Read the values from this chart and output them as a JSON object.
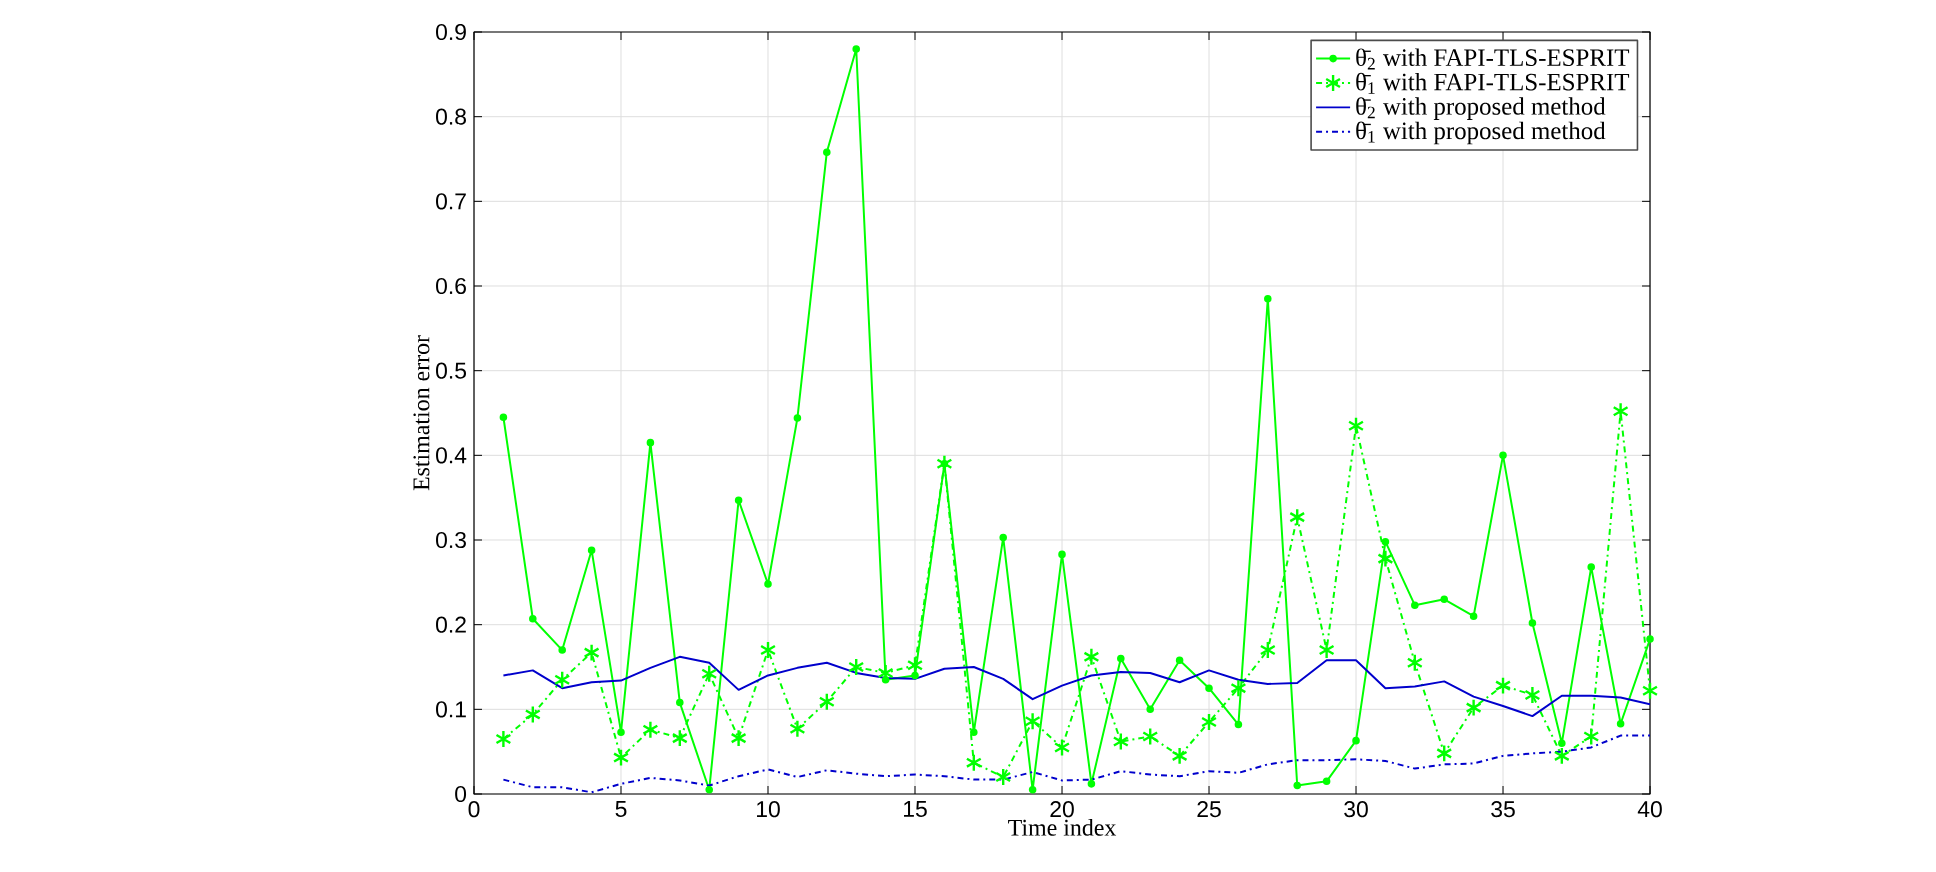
{
  "chart_data": {
    "type": "line",
    "xlabel": "Time index",
    "ylabel": "Estimation error",
    "x": [
      1,
      2,
      3,
      4,
      5,
      6,
      7,
      8,
      9,
      10,
      11,
      12,
      13,
      14,
      15,
      16,
      17,
      18,
      19,
      20,
      21,
      22,
      23,
      24,
      25,
      26,
      27,
      28,
      29,
      30,
      31,
      32,
      33,
      34,
      35,
      36,
      37,
      38,
      39,
      40
    ],
    "xlim": [
      0,
      40
    ],
    "xticks": [
      0,
      5,
      10,
      15,
      20,
      25,
      30,
      35,
      40
    ],
    "ylim": [
      0,
      0.9
    ],
    "yticks": [
      0,
      0.1,
      0.2,
      0.3,
      0.4,
      0.5,
      0.6,
      0.7,
      0.8,
      0.9
    ],
    "grid": true,
    "legend": "top right",
    "series": [
      {
        "name": "θ̄$_{2}$ with FAPI-TLS-ESPRIT",
        "color": "#00ff00",
        "marker": "circle",
        "line_style": "solid",
        "values": [
          0.445,
          0.207,
          0.17,
          0.288,
          0.073,
          0.415,
          0.108,
          0.005,
          0.347,
          0.248,
          0.444,
          0.758,
          0.88,
          0.135,
          0.14,
          0.39,
          0.073,
          0.303,
          0.005,
          0.283,
          0.012,
          0.16,
          0.1,
          0.158,
          0.125,
          0.082,
          0.585,
          0.01,
          0.015,
          0.063,
          0.298,
          0.223,
          0.23,
          0.21,
          0.4,
          0.202,
          0.06,
          0.268,
          0.083,
          0.183
        ]
      },
      {
        "name": "θ̄$_{1}$ with FAPI-TLS-ESPRIT",
        "color": "#00ff00",
        "marker": "cross",
        "line_style": "dashdot",
        "values": [
          0.065,
          0.094,
          0.135,
          0.167,
          0.043,
          0.076,
          0.066,
          0.142,
          0.066,
          0.17,
          0.077,
          0.109,
          0.15,
          0.143,
          0.152,
          0.39,
          0.037,
          0.02,
          0.086,
          0.055,
          0.162,
          0.062,
          0.068,
          0.045,
          0.085,
          0.125,
          0.17,
          0.327,
          0.17,
          0.435,
          0.278,
          0.155,
          0.048,
          0.102,
          0.128,
          0.117,
          0.045,
          0.068,
          0.452,
          0.122
        ]
      },
      {
        "name": "θ̄$_{2}$ with proposed method",
        "color": "#0000cc",
        "marker": "none",
        "line_style": "solid",
        "values": [
          0.14,
          0.146,
          0.125,
          0.132,
          0.134,
          0.149,
          0.162,
          0.155,
          0.123,
          0.14,
          0.149,
          0.155,
          0.143,
          0.137,
          0.136,
          0.148,
          0.15,
          0.136,
          0.112,
          0.128,
          0.14,
          0.144,
          0.143,
          0.132,
          0.146,
          0.135,
          0.13,
          0.131,
          0.158,
          0.158,
          0.125,
          0.127,
          0.133,
          0.115,
          0.104,
          0.092,
          0.116,
          0.116,
          0.114,
          0.106
        ]
      },
      {
        "name": "θ̄$_{1}$ with proposed method",
        "color": "#0000cc",
        "marker": "none",
        "line_style": "dashdot",
        "values": [
          0.017,
          0.008,
          0.008,
          0.002,
          0.012,
          0.019,
          0.016,
          0.01,
          0.021,
          0.029,
          0.02,
          0.028,
          0.024,
          0.021,
          0.023,
          0.021,
          0.017,
          0.017,
          0.026,
          0.016,
          0.017,
          0.027,
          0.023,
          0.021,
          0.027,
          0.025,
          0.035,
          0.04,
          0.04,
          0.041,
          0.039,
          0.03,
          0.035,
          0.036,
          0.045,
          0.048,
          0.05,
          0.055,
          0.069,
          0.069
        ]
      }
    ]
  }
}
